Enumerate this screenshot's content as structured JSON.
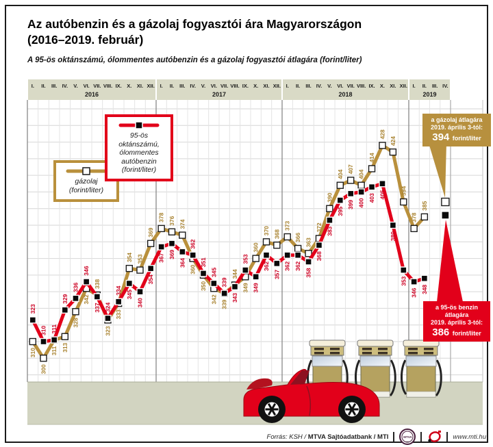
{
  "page": {
    "title_line1": "Az autóbenzin és a gázolaj fogyasztói ára Magyarországon",
    "title_line2": "(2016–2019. február)",
    "subtitle": "A 95-ös oktánszámú, ólommentes autóbenzin és a gázolaj fogyasztói átlagára (forint/liter)"
  },
  "legend": {
    "benzin": {
      "lines": [
        "95-ös oktánszámú,",
        "ólommentes",
        "autóbenzin",
        "(forint/liter)"
      ],
      "color": "#e2001a"
    },
    "gazolaj": {
      "lines": [
        "gázolaj",
        "(forint/liter)"
      ],
      "color": "#b9903c"
    }
  },
  "annotations": {
    "gazolaj": {
      "line1": "a gázolaj átlagára",
      "line2": "2019. április 3-tól:",
      "value": "394",
      "unit": "forint/liter",
      "color": "#b7903e"
    },
    "benzin": {
      "line1": "a 95-ös benzin átlagára",
      "line2": "2019. április 3-tól:",
      "value": "386",
      "unit": "forint/liter",
      "color": "#e2001a"
    }
  },
  "chart_data": {
    "type": "line",
    "title": "Az autóbenzin és a gázolaj fogyasztói ára Magyarországon (2016–2019. február)",
    "ylabel": "forint/liter",
    "ylim": [
      290,
      455
    ],
    "grid": true,
    "legend_position": "upper-left",
    "years": [
      {
        "label": "2016",
        "months": [
          "I.",
          "II.",
          "III.",
          "IV.",
          "V.",
          "VI.",
          "VII.",
          "VIII.",
          "IX.",
          "X.",
          "XI.",
          "XII."
        ]
      },
      {
        "label": "2017",
        "months": [
          "I.",
          "II.",
          "III.",
          "IV.",
          "V.",
          "VI.",
          "VII.",
          "VIII.",
          "IX.",
          "X.",
          "XI.",
          "XII."
        ]
      },
      {
        "label": "2018",
        "months": [
          "I.",
          "II.",
          "III.",
          "IV.",
          "V.",
          "VI.",
          "VII.",
          "VIII.",
          "IX.",
          "X.",
          "XI.",
          "XII."
        ]
      },
      {
        "label": "2019",
        "months": [
          "I.",
          "II.",
          "III.",
          "IV."
        ]
      }
    ],
    "series": [
      {
        "name": "gázolaj (forint/liter)",
        "color": "#b9903c",
        "label_color": "#a8822f",
        "marker": "white-square",
        "values": [
          310,
          300,
          311,
          313,
          328,
          342,
          338,
          323,
          333,
          354,
          353,
          369,
          378,
          376,
          374,
          360,
          350,
          342,
          339,
          344,
          349,
          360,
          370,
          368,
          373,
          366,
          363,
          372,
          390,
          404,
          407,
          404,
          414,
          428,
          424,
          394,
          378,
          385,
          null,
          394
        ]
      },
      {
        "name": "95-ös oktánszámú, ólommentes autóbenzin (forint/liter)",
        "color": "#e2001a",
        "label_color": "#cc0022",
        "marker": "black-square",
        "values": [
          323,
          310,
          311,
          329,
          336,
          346,
          337,
          324,
          334,
          345,
          340,
          354,
          367,
          369,
          364,
          362,
          351,
          345,
          339,
          343,
          353,
          349,
          362,
          357,
          362,
          362,
          358,
          368,
          383,
          395,
          399,
          400,
          403,
          405,
          380,
          353,
          346,
          348,
          null,
          386
        ]
      }
    ]
  },
  "footer": {
    "source_prefix": "Forrás: KSH /",
    "source_bold": "MTVA Sajtóadatbank",
    "source_tail": "/ MTI",
    "mtva_badge": "MTVA",
    "website": "www.mti.hu"
  }
}
